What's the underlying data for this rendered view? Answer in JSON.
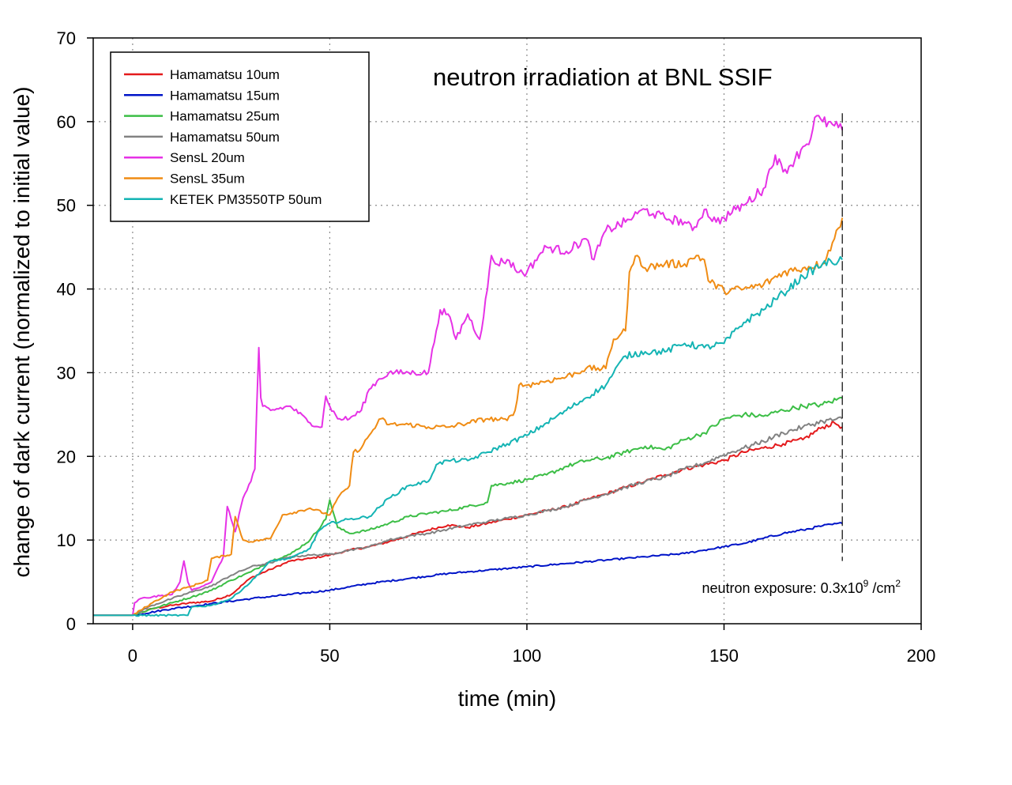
{
  "chart_data": {
    "type": "line",
    "title": "neutron irradiation at BNL SSIF",
    "xlabel": "time  (min)",
    "ylabel": "change of dark current (normalized to initial value)",
    "xlim": [
      -10,
      200
    ],
    "ylim": [
      0,
      70
    ],
    "xticks": [
      0,
      50,
      100,
      150,
      200
    ],
    "yticks": [
      0,
      10,
      20,
      30,
      40,
      50,
      60,
      70
    ],
    "grid": true,
    "legend_position": "top-left",
    "annotation": {
      "prefix": "neutron exposure: 0.3x10",
      "exponent": "9",
      "middle": " /cm",
      "unit_exponent": "2"
    },
    "marker_x": 180,
    "series": [
      {
        "name": "Hamamatsu  10um",
        "color": "#e41a1c",
        "x": [
          -10,
          0,
          5,
          10,
          15,
          20,
          25,
          30,
          35,
          40,
          45,
          50,
          55,
          60,
          65,
          70,
          75,
          80,
          85,
          90,
          95,
          100,
          105,
          110,
          115,
          120,
          125,
          130,
          135,
          140,
          145,
          150,
          155,
          160,
          165,
          170,
          175,
          178,
          180
        ],
        "y": [
          1,
          1,
          1.8,
          2.2,
          2.5,
          2.7,
          3.5,
          5.5,
          6.5,
          7.5,
          7.8,
          8.2,
          8.8,
          9.2,
          9.8,
          10.5,
          11.2,
          11.8,
          11.5,
          12,
          12.5,
          13,
          13.5,
          14,
          14.8,
          15.5,
          16.3,
          17,
          17.8,
          18.5,
          19,
          19.5,
          20.5,
          21,
          21.5,
          22,
          23.5,
          24,
          23.5
        ]
      },
      {
        "name": "Hamamatsu 15um",
        "color": "#0014c8",
        "x": [
          -10,
          0,
          10,
          20,
          30,
          40,
          50,
          60,
          70,
          80,
          90,
          100,
          110,
          120,
          130,
          140,
          145,
          150,
          155,
          160,
          165,
          170,
          175,
          180
        ],
        "y": [
          1,
          1,
          1.8,
          2.4,
          3,
          3.5,
          4,
          4.8,
          5.4,
          6,
          6.4,
          6.8,
          7.2,
          7.6,
          8,
          8.4,
          8.8,
          9.2,
          9.6,
          10.2,
          10.8,
          11.2,
          11.7,
          12
        ]
      },
      {
        "name": "Hamamatsu 25um",
        "color": "#3cbe46",
        "x": [
          -10,
          0,
          5,
          10,
          15,
          20,
          25,
          30,
          35,
          40,
          45,
          49,
          50,
          52,
          55,
          60,
          65,
          70,
          75,
          80,
          85,
          90,
          91,
          95,
          100,
          105,
          110,
          115,
          120,
          125,
          130,
          135,
          140,
          145,
          150,
          155,
          160,
          165,
          170,
          175,
          180
        ],
        "y": [
          1,
          1,
          1.8,
          2.5,
          3.2,
          4,
          5.2,
          6.2,
          7.5,
          8.3,
          10,
          12.5,
          14.8,
          11.5,
          10.8,
          11.2,
          12,
          12.8,
          13.2,
          13.5,
          14,
          14.5,
          16.5,
          16.8,
          17.2,
          17.8,
          18.8,
          19.5,
          19.8,
          20.5,
          21.2,
          20.8,
          22,
          22.8,
          24.5,
          25,
          24.8,
          25.5,
          26,
          26.2,
          27
        ]
      },
      {
        "name": "Hamamatsu 50um",
        "color": "#828282",
        "x": [
          -10,
          0,
          5,
          10,
          15,
          20,
          25,
          30,
          35,
          40,
          45,
          50,
          55,
          60,
          65,
          70,
          75,
          80,
          85,
          90,
          95,
          100,
          105,
          110,
          115,
          120,
          125,
          130,
          135,
          140,
          145,
          150,
          155,
          160,
          165,
          170,
          175,
          180
        ],
        "y": [
          1,
          1,
          2.2,
          3,
          3.8,
          4.5,
          5.8,
          6.8,
          7.3,
          8,
          8.2,
          8.3,
          8.8,
          9.2,
          10,
          10.5,
          10.8,
          11.3,
          11.8,
          12.2,
          12.6,
          13,
          13.5,
          14,
          14.8,
          15.5,
          16.3,
          17,
          17.5,
          18.5,
          19.2,
          20.2,
          21,
          21.8,
          22.8,
          23.5,
          24.2,
          24.5
        ]
      },
      {
        "name": "SensL 20um",
        "color": "#e632e6",
        "x": [
          -10,
          0,
          0.5,
          2,
          5,
          10,
          12,
          13,
          14,
          15,
          20,
          23,
          24,
          26,
          28,
          30,
          31,
          32,
          32.5,
          33,
          35,
          40,
          45,
          48,
          49,
          50,
          52,
          55,
          58,
          60,
          62,
          65,
          70,
          75,
          77,
          78,
          80,
          82,
          85,
          88,
          90,
          91,
          92,
          95,
          98,
          100,
          103,
          105,
          110,
          115,
          117,
          120,
          125,
          128,
          130,
          132,
          135,
          140,
          142,
          145,
          148,
          150,
          153,
          155,
          160,
          163,
          165,
          168,
          170,
          172,
          173,
          175,
          178,
          180
        ],
        "y": [
          1,
          1,
          2.5,
          3,
          3.2,
          3.5,
          5,
          7.5,
          5,
          4,
          5,
          8,
          14,
          11,
          15,
          17,
          18.5,
          33,
          27,
          26,
          25.5,
          26,
          24,
          23.5,
          27.2,
          26,
          24.5,
          24.5,
          25.5,
          28,
          29,
          30,
          30,
          30,
          35,
          37.5,
          37,
          34,
          37,
          34,
          40,
          44,
          43,
          43.5,
          42,
          42,
          44,
          45,
          44.5,
          46,
          43.5,
          47,
          48,
          49,
          49.5,
          49,
          48.5,
          48,
          47,
          49.5,
          48,
          48.5,
          49.5,
          50,
          52,
          56,
          54,
          55.5,
          57,
          58,
          60.5,
          60,
          59.5,
          59
        ]
      },
      {
        "name": "SensL 35um",
        "color": "#f08c14",
        "x": [
          -10,
          0,
          5,
          10,
          15,
          19,
          20,
          25,
          26,
          28,
          30,
          35,
          38,
          40,
          45,
          50,
          52,
          55,
          56,
          58,
          60,
          63,
          65,
          70,
          75,
          80,
          85,
          90,
          95,
          97,
          98,
          100,
          105,
          110,
          115,
          120,
          122,
          125,
          126,
          127,
          128,
          130,
          135,
          140,
          143,
          145,
          146,
          150,
          155,
          160,
          165,
          170,
          175,
          178,
          180
        ],
        "y": [
          1,
          1,
          2.5,
          3.8,
          4.5,
          5.2,
          7.8,
          8.3,
          12.8,
          10,
          9.8,
          10.2,
          13,
          13.2,
          13.8,
          13,
          15,
          16.5,
          20.5,
          21,
          22.5,
          24.5,
          23.8,
          23.8,
          23.5,
          23.5,
          24,
          24.5,
          24.3,
          25.5,
          28.5,
          28.5,
          29,
          29.5,
          30.5,
          30.5,
          34,
          35,
          42,
          43,
          44,
          42.5,
          43,
          43,
          44,
          43.5,
          41,
          39.8,
          40,
          40.5,
          42,
          42.5,
          43,
          46,
          48.5
        ]
      },
      {
        "name": "KETEK PM3550TP 50um",
        "color": "#14b4b4",
        "x": [
          -10,
          0,
          5,
          10,
          14,
          15,
          20,
          25,
          30,
          35,
          40,
          45,
          47,
          50,
          55,
          60,
          65,
          70,
          75,
          77,
          80,
          85,
          90,
          95,
          100,
          105,
          110,
          115,
          120,
          122,
          125,
          130,
          135,
          140,
          145,
          150,
          155,
          160,
          165,
          170,
          175,
          180
        ],
        "y": [
          1,
          1,
          1,
          1,
          1,
          2,
          2.2,
          3,
          5,
          7.5,
          7.8,
          9,
          11,
          12,
          12.5,
          12.8,
          15,
          16.5,
          17,
          19,
          19.5,
          19.5,
          20.5,
          21.5,
          22.5,
          24,
          25.5,
          27,
          28.5,
          30,
          32,
          32.5,
          32.5,
          33.5,
          33,
          33.5,
          36,
          37.5,
          39.5,
          41.5,
          43,
          43.5
        ]
      }
    ]
  }
}
